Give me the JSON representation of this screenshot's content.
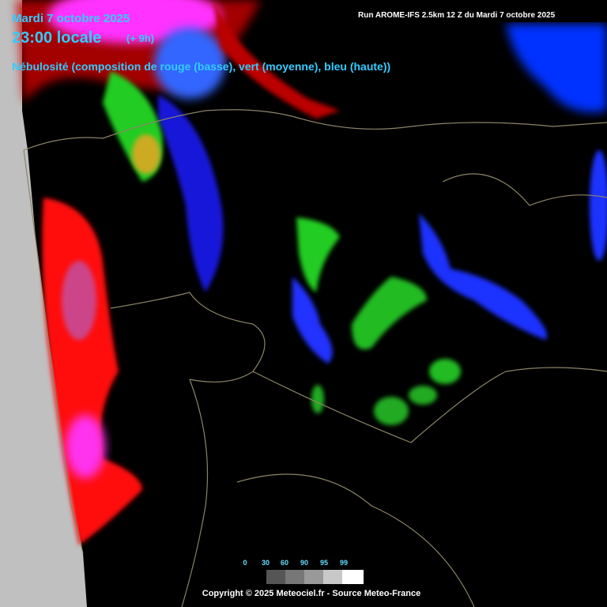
{
  "header": {
    "date": "Mardi 7 octobre 2025",
    "time": "23:00 locale",
    "offset": "(+ 9h)",
    "title": "Nébulosité (composition de rouge (basse), vert (moyenne), bleu (haute))",
    "run": "Run AROME-IFS 2.5km 12 Z du Mardi 7 octobre 2025"
  },
  "legend": {
    "labels": [
      0,
      30,
      60,
      90,
      95,
      99
    ]
  },
  "footer": {
    "copyright": "Copyright © 2025 Meteociel.fr - Source Meteo-France"
  }
}
